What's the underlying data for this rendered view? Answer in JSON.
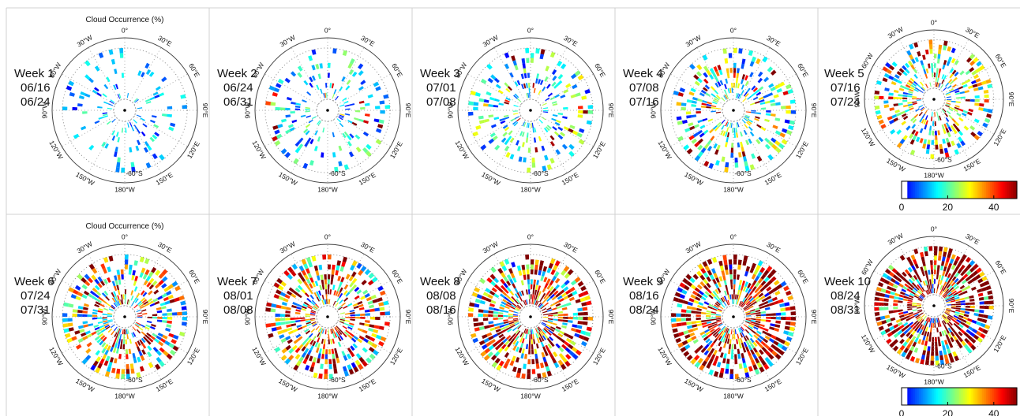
{
  "plot_title": "Cloud Occurrence (%)",
  "panels": [
    {
      "week": "Week 1",
      "start": "06/16",
      "end": "06/24"
    },
    {
      "week": "Week 2",
      "start": "06/24",
      "end": "06/31"
    },
    {
      "week": "Week 3",
      "start": "07/01",
      "end": "07/08"
    },
    {
      "week": "Week 4",
      "start": "07/08",
      "end": "07/16"
    },
    {
      "week": "Week 5",
      "start": "07/16",
      "end": "07/24"
    },
    {
      "week": "Week 6",
      "start": "07/24",
      "end": "07/31"
    },
    {
      "week": "Week 7",
      "start": "08/01",
      "end": "08/08"
    },
    {
      "week": "Week 8",
      "start": "08/08",
      "end": "08/16"
    },
    {
      "week": "Week 9",
      "start": "08/16",
      "end": "08/24"
    },
    {
      "week": "Week 10",
      "start": "08/24",
      "end": "08/31"
    }
  ],
  "longitude_labels": [
    "0°",
    "30°E",
    "60°E",
    "90°E",
    "120°E",
    "150°E",
    "180°W",
    "150°W",
    "120°W",
    "90°W",
    "60°W",
    "30°W"
  ],
  "latitude_label": "-60°S",
  "colorbar": {
    "lim": [
      0,
      50
    ],
    "ticks": [
      0,
      20,
      40
    ]
  }
}
